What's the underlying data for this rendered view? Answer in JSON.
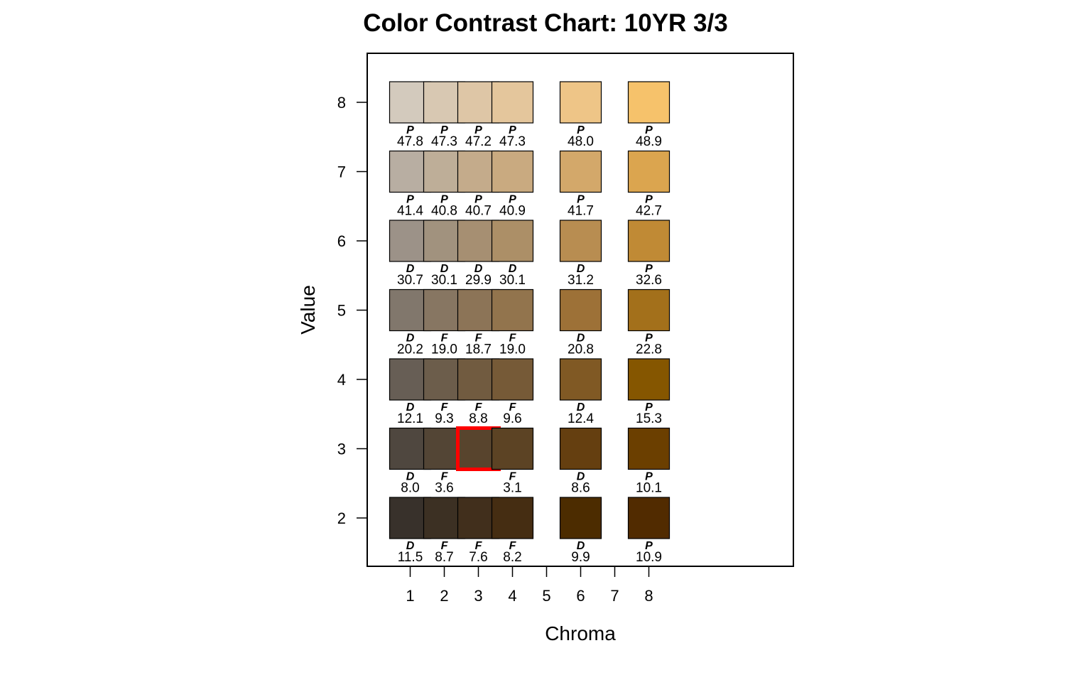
{
  "chart_data": {
    "type": "heatmap",
    "title": "Color Contrast Chart: 10YR 3/3",
    "xlabel": "Chroma",
    "ylabel": "Value",
    "x_ticks": [
      "1",
      "2",
      "3",
      "4",
      "5",
      "6",
      "7",
      "8"
    ],
    "y_ticks": [
      "2",
      "3",
      "4",
      "5",
      "6",
      "7",
      "8"
    ],
    "columns": [
      1,
      2,
      3,
      4,
      6,
      8
    ],
    "selected": {
      "value": 3,
      "chroma": 3,
      "highlight_color": "#ff0000"
    },
    "cells": [
      {
        "value": 8,
        "chroma": 1,
        "color": "#d3cabd",
        "code": "P",
        "contrast": "47.8"
      },
      {
        "value": 8,
        "chroma": 2,
        "color": "#d8c8b2",
        "code": "P",
        "contrast": "47.3"
      },
      {
        "value": 8,
        "chroma": 3,
        "color": "#dec6a6",
        "code": "P",
        "contrast": "47.2"
      },
      {
        "value": 8,
        "chroma": 4,
        "color": "#e4c69c",
        "code": "P",
        "contrast": "47.3"
      },
      {
        "value": 8,
        "chroma": 6,
        "color": "#eec587",
        "code": "P",
        "contrast": "48.0"
      },
      {
        "value": 8,
        "chroma": 8,
        "color": "#f6c26b",
        "code": "P",
        "contrast": "48.9"
      },
      {
        "value": 7,
        "chroma": 1,
        "color": "#b8aea2",
        "code": "P",
        "contrast": "41.4"
      },
      {
        "value": 7,
        "chroma": 2,
        "color": "#beae98",
        "code": "P",
        "contrast": "40.8"
      },
      {
        "value": 7,
        "chroma": 3,
        "color": "#c4ab8b",
        "code": "P",
        "contrast": "40.7"
      },
      {
        "value": 7,
        "chroma": 4,
        "color": "#c9aa80",
        "code": "P",
        "contrast": "40.9"
      },
      {
        "value": 7,
        "chroma": 6,
        "color": "#d3a86a",
        "code": "P",
        "contrast": "41.7"
      },
      {
        "value": 7,
        "chroma": 8,
        "color": "#dba54f",
        "code": "P",
        "contrast": "42.7"
      },
      {
        "value": 6,
        "chroma": 1,
        "color": "#9c9288",
        "code": "D",
        "contrast": "30.7"
      },
      {
        "value": 6,
        "chroma": 2,
        "color": "#a1927e",
        "code": "D",
        "contrast": "30.1"
      },
      {
        "value": 6,
        "chroma": 3,
        "color": "#a68f72",
        "code": "D",
        "contrast": "29.9"
      },
      {
        "value": 6,
        "chroma": 4,
        "color": "#ac8f67",
        "code": "D",
        "contrast": "30.1"
      },
      {
        "value": 6,
        "chroma": 6,
        "color": "#b88d51",
        "code": "D",
        "contrast": "31.2"
      },
      {
        "value": 6,
        "chroma": 8,
        "color": "#c08a35",
        "code": "P",
        "contrast": "32.6"
      },
      {
        "value": 5,
        "chroma": 1,
        "color": "#81776c",
        "code": "D",
        "contrast": "20.2"
      },
      {
        "value": 5,
        "chroma": 2,
        "color": "#877662",
        "code": "F",
        "contrast": "19.0"
      },
      {
        "value": 5,
        "chroma": 3,
        "color": "#8c7457",
        "code": "F",
        "contrast": "18.7"
      },
      {
        "value": 5,
        "chroma": 4,
        "color": "#92744d",
        "code": "F",
        "contrast": "19.0"
      },
      {
        "value": 5,
        "chroma": 6,
        "color": "#9d7137",
        "code": "D",
        "contrast": "20.8"
      },
      {
        "value": 5,
        "chroma": 8,
        "color": "#a3701b",
        "code": "P",
        "contrast": "22.8"
      },
      {
        "value": 4,
        "chroma": 1,
        "color": "#675e55",
        "code": "D",
        "contrast": "12.1"
      },
      {
        "value": 4,
        "chroma": 2,
        "color": "#6c5d4b",
        "code": "F",
        "contrast": "9.3"
      },
      {
        "value": 4,
        "chroma": 3,
        "color": "#715b40",
        "code": "F",
        "contrast": "8.8"
      },
      {
        "value": 4,
        "chroma": 4,
        "color": "#765a37",
        "code": "F",
        "contrast": "9.6"
      },
      {
        "value": 4,
        "chroma": 6,
        "color": "#805924",
        "code": "D",
        "contrast": "12.4"
      },
      {
        "value": 4,
        "chroma": 8,
        "color": "#855600",
        "code": "P",
        "contrast": "15.3"
      },
      {
        "value": 3,
        "chroma": 1,
        "color": "#4f473f",
        "code": "D",
        "contrast": "8.0"
      },
      {
        "value": 3,
        "chroma": 2,
        "color": "#534535",
        "code": "F",
        "contrast": "3.6"
      },
      {
        "value": 3,
        "chroma": 3,
        "color": "#58442d",
        "code": "",
        "contrast": ""
      },
      {
        "value": 3,
        "chroma": 4,
        "color": "#5c4324",
        "code": "F",
        "contrast": "3.1"
      },
      {
        "value": 3,
        "chroma": 6,
        "color": "#653f10",
        "code": "D",
        "contrast": "8.6"
      },
      {
        "value": 3,
        "chroma": 8,
        "color": "#6b3f00",
        "code": "P",
        "contrast": "10.1"
      },
      {
        "value": 2,
        "chroma": 1,
        "color": "#38312b",
        "code": "D",
        "contrast": "11.5"
      },
      {
        "value": 2,
        "chroma": 2,
        "color": "#3c3023",
        "code": "F",
        "contrast": "8.7"
      },
      {
        "value": 2,
        "chroma": 3,
        "color": "#412f1c",
        "code": "F",
        "contrast": "7.6"
      },
      {
        "value": 2,
        "chroma": 4,
        "color": "#452d12",
        "code": "F",
        "contrast": "8.2"
      },
      {
        "value": 2,
        "chroma": 6,
        "color": "#4c2c00",
        "code": "D",
        "contrast": "9.9"
      },
      {
        "value": 2,
        "chroma": 8,
        "color": "#512b00",
        "code": "P",
        "contrast": "10.9"
      }
    ]
  }
}
